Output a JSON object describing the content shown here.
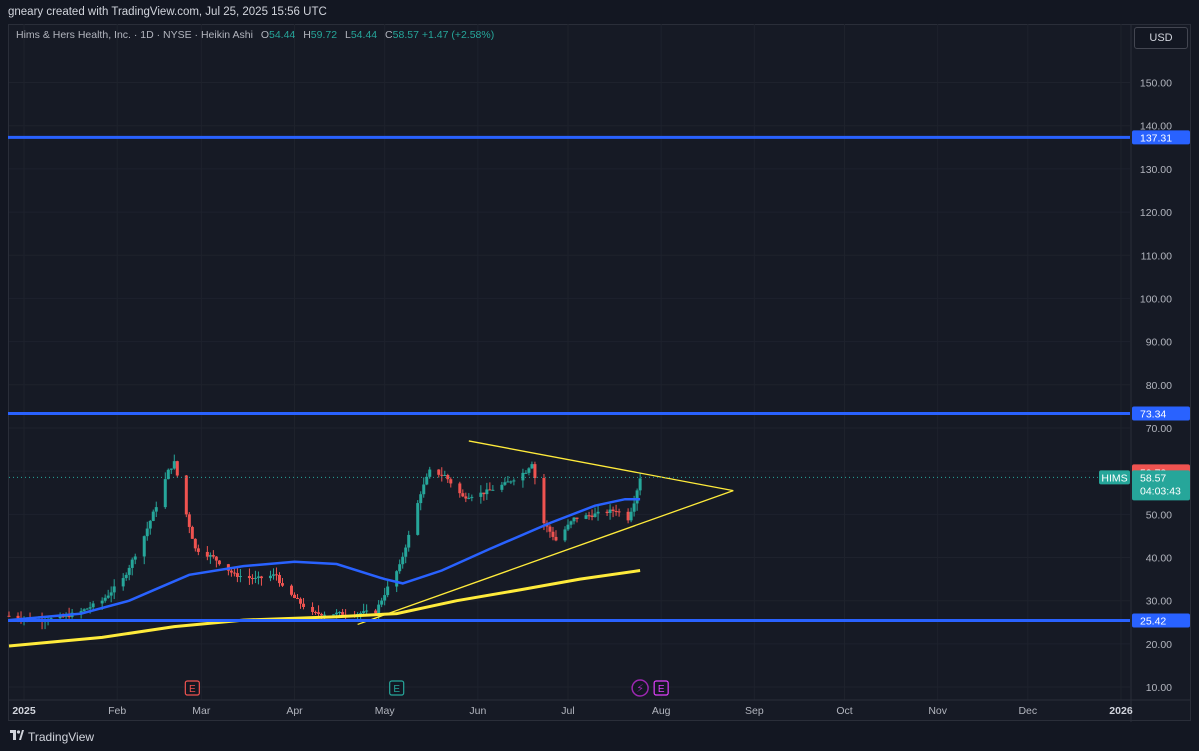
{
  "header": {
    "caption": "gneary created with TradingView.com, Jul 25, 2025 15:56 UTC"
  },
  "legend": {
    "symbol_title": "Hims & Hers Health, Inc. · 1D · NYSE · Heikin Ashi",
    "open_label": "O",
    "open_value": "54.44",
    "high_label": "H",
    "high_value": "59.72",
    "low_label": "L",
    "low_value": "54.44",
    "close_label": "C",
    "close_value": "58.57",
    "change": "+1.47 (+2.58%)"
  },
  "currency": "USD",
  "footer": {
    "brand": "TradingView"
  },
  "colors": {
    "up": "#26a69a",
    "down": "#ef5350",
    "sma_blue": "#2962ff",
    "sma_yellow": "#ffeb3b",
    "level": "#2962ff",
    "trendline": "#ffeb3b"
  },
  "chart_data": {
    "type": "candlestick",
    "style": "Heikin Ashi",
    "symbol": "HIMS",
    "interval": "1D",
    "y_range": [
      7,
      158
    ],
    "y_ticks": [
      "150.00",
      "140.00",
      "130.00",
      "120.00",
      "110.00",
      "100.00",
      "90.00",
      "80.00",
      "70.00",
      "60.00",
      "50.00",
      "40.00",
      "30.00",
      "20.00",
      "10.00"
    ],
    "x_range": [
      "2024-12-27",
      "2026-01-04"
    ],
    "x_ticks": [
      {
        "date": "2025-01-01",
        "label": "2025"
      },
      {
        "date": "2025-02-01",
        "label": "Feb"
      },
      {
        "date": "2025-03-01",
        "label": "Mar"
      },
      {
        "date": "2025-04-01",
        "label": "Apr"
      },
      {
        "date": "2025-05-01",
        "label": "May"
      },
      {
        "date": "2025-06-01",
        "label": "Jun"
      },
      {
        "date": "2025-07-01",
        "label": "Jul"
      },
      {
        "date": "2025-08-01",
        "label": "Aug"
      },
      {
        "date": "2025-09-01",
        "label": "Sep"
      },
      {
        "date": "2025-10-01",
        "label": "Oct"
      },
      {
        "date": "2025-11-01",
        "label": "Nov"
      },
      {
        "date": "2025-12-01",
        "label": "Dec"
      },
      {
        "date": "2026-01-01",
        "label": "2026"
      }
    ],
    "close_path": [
      [
        "2024-12-27",
        26.5
      ],
      [
        "2025-01-06",
        25.5
      ],
      [
        "2025-01-13",
        26.0
      ],
      [
        "2025-01-20",
        27.5
      ],
      [
        "2025-01-27",
        30
      ],
      [
        "2025-02-03",
        35
      ],
      [
        "2025-02-10",
        45
      ],
      [
        "2025-02-14",
        52
      ],
      [
        "2025-02-18",
        60
      ],
      [
        "2025-02-20",
        62
      ],
      [
        "2025-02-24",
        50
      ],
      [
        "2025-02-27",
        42
      ],
      [
        "2025-03-05",
        40
      ],
      [
        "2025-03-12",
        36
      ],
      [
        "2025-03-19",
        35
      ],
      [
        "2025-03-26",
        36
      ],
      [
        "2025-03-28",
        33
      ],
      [
        "2025-04-02",
        30
      ],
      [
        "2025-04-07",
        27
      ],
      [
        "2025-04-14",
        27
      ],
      [
        "2025-04-21",
        27
      ],
      [
        "2025-04-28",
        27.5
      ],
      [
        "2025-05-02",
        33
      ],
      [
        "2025-05-06",
        38
      ],
      [
        "2025-05-09",
        45
      ],
      [
        "2025-05-13",
        55
      ],
      [
        "2025-05-16",
        60
      ],
      [
        "2025-05-21",
        59
      ],
      [
        "2025-05-27",
        54
      ],
      [
        "2025-06-03",
        55
      ],
      [
        "2025-06-10",
        57
      ],
      [
        "2025-06-17",
        60
      ],
      [
        "2025-06-19",
        62
      ],
      [
        "2025-06-23",
        48
      ],
      [
        "2025-06-27",
        44
      ],
      [
        "2025-07-03",
        49
      ],
      [
        "2025-07-10",
        50
      ],
      [
        "2025-07-17",
        51
      ],
      [
        "2025-07-21",
        49
      ],
      [
        "2025-07-23",
        53
      ],
      [
        "2025-07-25",
        58.57
      ]
    ],
    "candle_spread": 1.2,
    "sma_blue": [
      [
        "2024-12-27",
        25.5
      ],
      [
        "2025-01-20",
        27
      ],
      [
        "2025-02-05",
        30
      ],
      [
        "2025-02-15",
        33
      ],
      [
        "2025-02-25",
        36
      ],
      [
        "2025-03-15",
        38
      ],
      [
        "2025-04-01",
        39
      ],
      [
        "2025-04-15",
        38.5
      ],
      [
        "2025-05-01",
        35
      ],
      [
        "2025-05-07",
        34
      ],
      [
        "2025-05-20",
        37
      ],
      [
        "2025-06-05",
        42
      ],
      [
        "2025-06-25",
        48
      ],
      [
        "2025-07-10",
        52
      ],
      [
        "2025-07-20",
        53.5
      ],
      [
        "2025-07-25",
        53.5
      ]
    ],
    "sma_yellow": [
      [
        "2024-12-27",
        19.5
      ],
      [
        "2025-01-27",
        21.5
      ],
      [
        "2025-02-20",
        24
      ],
      [
        "2025-03-15",
        25.5
      ],
      [
        "2025-04-15",
        26.3
      ],
      [
        "2025-05-05",
        27
      ],
      [
        "2025-05-25",
        30
      ],
      [
        "2025-06-15",
        32.5
      ],
      [
        "2025-07-05",
        35
      ],
      [
        "2025-07-25",
        37
      ]
    ],
    "horizontal_levels": [
      {
        "value": 137.31,
        "label": "137.31"
      },
      {
        "value": 73.34,
        "label": "73.34"
      },
      {
        "value": 25.42,
        "label": "25.42"
      }
    ],
    "trendlines": [
      {
        "from": [
          "2025-05-29",
          67
        ],
        "to": [
          "2025-08-25",
          55.5
        ]
      },
      {
        "from": [
          "2025-04-22",
          24.5
        ],
        "to": [
          "2025-08-25",
          55.5
        ]
      }
    ],
    "price_markers": [
      {
        "value": 59.72,
        "label": "59.72",
        "kind": "high"
      },
      {
        "value": 58.57,
        "label": "58.57",
        "kind": "last",
        "symbol": "HIMS",
        "countdown": "04:03:43"
      }
    ],
    "event_markers": [
      {
        "date": "2025-02-26",
        "label": "E",
        "color": "#ef5350"
      },
      {
        "date": "2025-05-05",
        "label": "E",
        "color": "#26a69a"
      },
      {
        "date": "2025-07-25",
        "label": "⚡",
        "color": "#9c27b0"
      },
      {
        "date": "2025-08-01",
        "label": "E",
        "color": "#e040fb"
      }
    ]
  }
}
